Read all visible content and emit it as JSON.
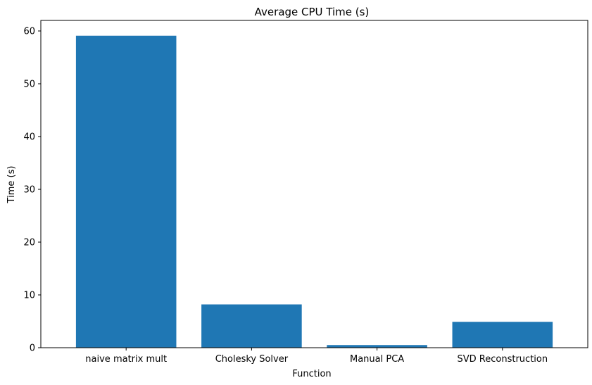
{
  "chart_data": {
    "type": "bar",
    "title": "Average CPU Time (s)",
    "xlabel": "Function",
    "ylabel": "Time (s)",
    "categories": [
      "naive matrix mult",
      "Cholesky Solver",
      "Manual PCA",
      "SVD Reconstruction"
    ],
    "values": [
      59.1,
      8.2,
      0.5,
      4.9
    ],
    "ylim": [
      0,
      62
    ],
    "yticks": [
      0,
      10,
      20,
      30,
      40,
      50,
      60
    ],
    "bar_color": "#1f77b4",
    "grid": false,
    "legend": "none"
  }
}
